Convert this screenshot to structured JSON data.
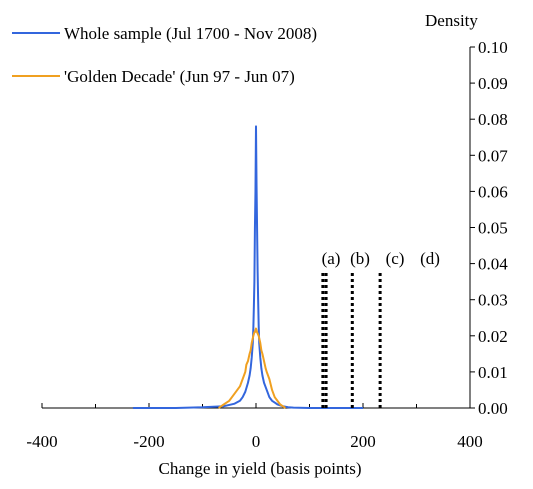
{
  "chart_data": {
    "type": "line",
    "title": "",
    "xlabel": "Change in yield (basis points)",
    "ylabel": "Density",
    "xlim": [
      -400,
      400
    ],
    "ylim": [
      0,
      0.1
    ],
    "x_ticks": [
      -400,
      -200,
      0,
      200,
      400
    ],
    "y_ticks": [
      0.0,
      0.01,
      0.02,
      0.03,
      0.04,
      0.05,
      0.06,
      0.07,
      0.08,
      0.09,
      0.1
    ],
    "x_tick_labels": [
      "-400",
      "-200",
      "0",
      "200",
      "400"
    ],
    "y_tick_labels": [
      "0.00",
      "0.01",
      "0.02",
      "0.03",
      "0.04",
      "0.05",
      "0.06",
      "0.07",
      "0.08",
      "0.09",
      "0.10"
    ],
    "grid": false,
    "legend_position": "top-left",
    "series": [
      {
        "name": "Whole sample (Jul 1700 - Nov 2008)",
        "color": "#3366dd",
        "x": [
          -230,
          -150,
          -100,
          -60,
          -40,
          -30,
          -25,
          -20,
          -15,
          -12,
          -10,
          -8,
          -6,
          -5,
          -4,
          -3,
          -2,
          -1,
          0,
          1,
          2,
          3,
          4,
          5,
          6,
          8,
          10,
          12,
          15,
          20,
          25,
          30,
          35,
          40,
          50,
          60,
          70,
          100,
          200
        ],
        "y": [
          0.0,
          0.0,
          0.0002,
          0.0005,
          0.0012,
          0.002,
          0.003,
          0.0045,
          0.007,
          0.009,
          0.011,
          0.014,
          0.018,
          0.022,
          0.028,
          0.035,
          0.05,
          0.06,
          0.078,
          0.062,
          0.05,
          0.038,
          0.03,
          0.023,
          0.018,
          0.014,
          0.011,
          0.009,
          0.007,
          0.005,
          0.003,
          0.002,
          0.0015,
          0.001,
          0.0005,
          0.0002,
          0.0001,
          0.0,
          0.0
        ]
      },
      {
        "name": "'Golden Decade' (Jun 97 - Jun 07)",
        "color": "#f0a020",
        "x": [
          -70,
          -65,
          -60,
          -55,
          -50,
          -45,
          -40,
          -35,
          -30,
          -25,
          -20,
          -18,
          -15,
          -12,
          -10,
          -8,
          -5,
          -3,
          -2,
          0,
          2,
          5,
          8,
          10,
          12,
          15,
          18,
          20,
          25,
          30,
          35,
          40,
          45,
          50,
          55
        ],
        "y": [
          0.0,
          0.0005,
          0.001,
          0.0015,
          0.002,
          0.003,
          0.004,
          0.005,
          0.006,
          0.008,
          0.01,
          0.012,
          0.013,
          0.015,
          0.016,
          0.018,
          0.02,
          0.021,
          0.021,
          0.022,
          0.021,
          0.02,
          0.018,
          0.016,
          0.015,
          0.013,
          0.011,
          0.01,
          0.008,
          0.005,
          0.003,
          0.002,
          0.001,
          0.0005,
          0.0
        ]
      }
    ],
    "annotations": [
      {
        "label": "(a)",
        "x": 130,
        "ymax": 0.0375
      },
      {
        "label": "(b)",
        "x": 180,
        "ymax": 0.0375
      },
      {
        "label": "(c)",
        "x": 232,
        "ymax": 0.0375
      },
      {
        "label": "(d)",
        "x": null,
        "ymax": null
      }
    ],
    "reference_lines": [
      {
        "x": 125,
        "ymax": 0.0375
      },
      {
        "x": 131,
        "ymax": 0.0375
      },
      {
        "x": 180,
        "ymax": 0.0375
      },
      {
        "x": 232,
        "ymax": 0.0375
      }
    ]
  }
}
